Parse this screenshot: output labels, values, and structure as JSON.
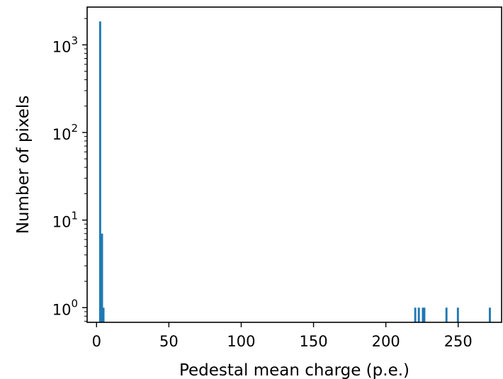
{
  "chart_data": {
    "type": "bar",
    "title": "",
    "xlabel": "Pedestal mean charge (p.e.)",
    "ylabel": "Number of pixels",
    "yscale": "log",
    "xlim": [
      -6.5,
      280
    ],
    "ylim": [
      0.68,
      2700
    ],
    "grid": false,
    "bar_color": "#1f77b4",
    "bar_width": 1.4,
    "bars": [
      {
        "x": 2.5,
        "value": 1850
      },
      {
        "x": 3.8,
        "value": 7
      },
      {
        "x": 4.8,
        "value": 1
      },
      {
        "x": 220.3,
        "value": 1
      },
      {
        "x": 222.8,
        "value": 1
      },
      {
        "x": 225.6,
        "value": 1
      },
      {
        "x": 226.6,
        "value": 1
      },
      {
        "x": 241.9,
        "value": 1
      },
      {
        "x": 249.8,
        "value": 1
      },
      {
        "x": 271.9,
        "value": 1
      }
    ],
    "x_ticks": [
      {
        "value": 0,
        "label": "0"
      },
      {
        "value": 50,
        "label": "50"
      },
      {
        "value": 100,
        "label": "100"
      },
      {
        "value": 150,
        "label": "150"
      },
      {
        "value": 200,
        "label": "200"
      },
      {
        "value": 250,
        "label": "250"
      }
    ],
    "y_ticks": [
      {
        "value": 1,
        "base": "10",
        "exp": "0"
      },
      {
        "value": 10,
        "base": "10",
        "exp": "1"
      },
      {
        "value": 100,
        "base": "10",
        "exp": "2"
      },
      {
        "value": 1000,
        "base": "10",
        "exp": "3"
      }
    ]
  }
}
